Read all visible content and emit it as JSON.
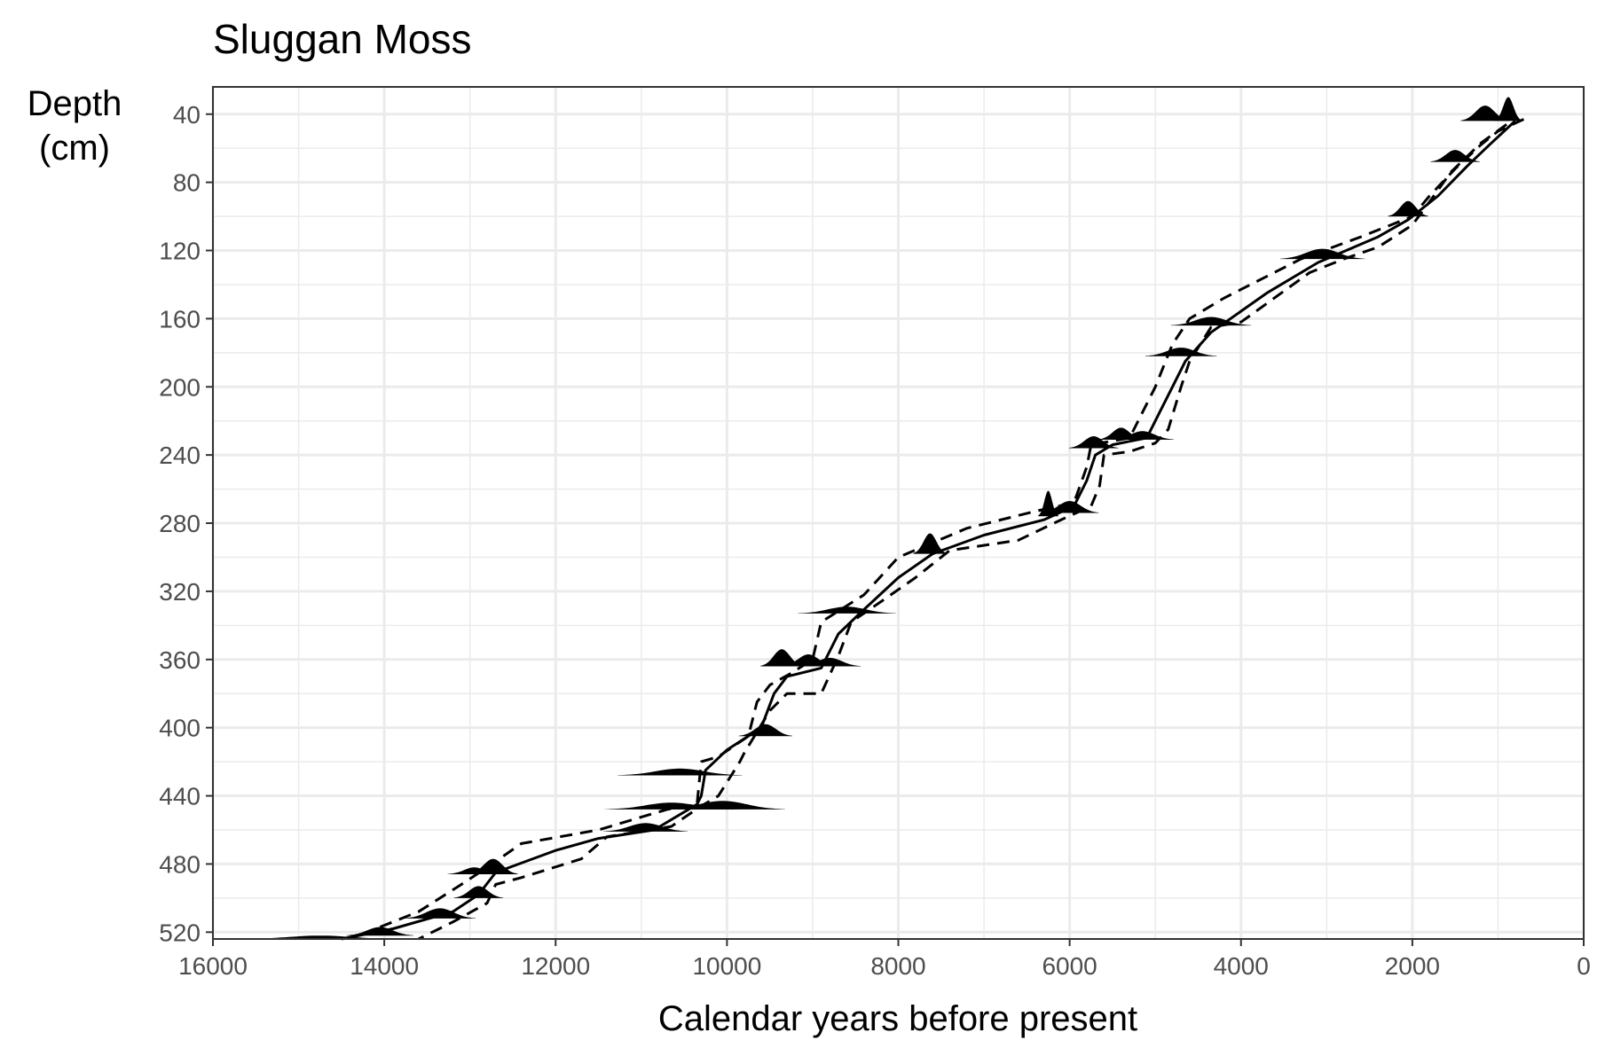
{
  "chart_data": {
    "type": "line",
    "title": "Sluggan Moss",
    "xlabel": "Calendar years before present",
    "ylabel_line1": "Depth",
    "ylabel_line2": "(cm)",
    "xlim": [
      16000,
      0
    ],
    "ylim": [
      524,
      24
    ],
    "x_ticks": [
      16000,
      14000,
      12000,
      10000,
      8000,
      6000,
      4000,
      2000,
      0
    ],
    "x_tick_labels": [
      "16000",
      "14000",
      "12000",
      "10000",
      "8000",
      "6000",
      "4000",
      "2000",
      "0"
    ],
    "y_ticks": [
      40,
      80,
      120,
      160,
      200,
      240,
      280,
      320,
      360,
      400,
      440,
      480,
      520
    ],
    "y_tick_labels": [
      "40",
      "80",
      "120",
      "160",
      "200",
      "240",
      "280",
      "320",
      "360",
      "400",
      "440",
      "480",
      "520"
    ],
    "grid": true,
    "colors": {
      "line": "#000000",
      "grid": "#ebebeb",
      "panel_border": "#333333",
      "density": "#000000"
    },
    "series": [
      {
        "name": "median",
        "style": "solid",
        "points": [
          [
            800,
            44
          ],
          [
            1100,
            58
          ],
          [
            1350,
            70
          ],
          [
            1700,
            88
          ],
          [
            2050,
            102
          ],
          [
            2400,
            112
          ],
          [
            3100,
            127
          ],
          [
            3700,
            145
          ],
          [
            4350,
            168
          ],
          [
            4650,
            185
          ],
          [
            4800,
            200
          ],
          [
            4950,
            215
          ],
          [
            5100,
            230
          ],
          [
            5500,
            234
          ],
          [
            5700,
            240
          ],
          [
            5800,
            255
          ],
          [
            5950,
            270
          ],
          [
            6300,
            278
          ],
          [
            7000,
            287
          ],
          [
            7600,
            298
          ],
          [
            8000,
            312
          ],
          [
            8450,
            333
          ],
          [
            8700,
            345
          ],
          [
            8900,
            365
          ],
          [
            9300,
            370
          ],
          [
            9450,
            380
          ],
          [
            9600,
            400
          ],
          [
            10000,
            413
          ],
          [
            10250,
            425
          ],
          [
            10300,
            440
          ],
          [
            10350,
            445
          ],
          [
            10850,
            460
          ],
          [
            11500,
            465
          ],
          [
            12000,
            472
          ],
          [
            12700,
            485
          ],
          [
            12900,
            498
          ],
          [
            13200,
            508
          ],
          [
            13900,
            518
          ],
          [
            14500,
            524
          ]
        ]
      },
      {
        "name": "upper_bound",
        "style": "dashed",
        "points": [
          [
            700,
            43
          ],
          [
            1000,
            50
          ],
          [
            1200,
            58
          ],
          [
            1500,
            72
          ],
          [
            1800,
            88
          ],
          [
            2000,
            100
          ],
          [
            2600,
            112
          ],
          [
            3300,
            125
          ],
          [
            4200,
            148
          ],
          [
            4600,
            160
          ],
          [
            4800,
            175
          ],
          [
            5000,
            200
          ],
          [
            5150,
            215
          ],
          [
            5300,
            230
          ],
          [
            5750,
            234
          ],
          [
            5800,
            247
          ],
          [
            5950,
            268
          ],
          [
            6400,
            273
          ],
          [
            7200,
            283
          ],
          [
            8000,
            300
          ],
          [
            8400,
            322
          ],
          [
            8900,
            338
          ],
          [
            9000,
            360
          ],
          [
            9250,
            368
          ],
          [
            9500,
            375
          ],
          [
            9650,
            385
          ],
          [
            9750,
            405
          ],
          [
            10100,
            417
          ],
          [
            10300,
            420
          ],
          [
            10350,
            445
          ],
          [
            10700,
            448
          ],
          [
            11500,
            460
          ],
          [
            12400,
            468
          ],
          [
            12800,
            482
          ],
          [
            13100,
            492
          ],
          [
            13600,
            508
          ],
          [
            14200,
            520
          ]
        ]
      },
      {
        "name": "lower_bound",
        "style": "dashed",
        "points": [
          [
            900,
            46
          ],
          [
            1200,
            57
          ],
          [
            1550,
            74
          ],
          [
            1750,
            88
          ],
          [
            2000,
            105
          ],
          [
            2400,
            118
          ],
          [
            2800,
            125
          ],
          [
            3200,
            133
          ],
          [
            4000,
            162
          ],
          [
            4350,
            165
          ],
          [
            4600,
            185
          ],
          [
            4700,
            200
          ],
          [
            4850,
            225
          ],
          [
            5000,
            233
          ],
          [
            5300,
            238
          ],
          [
            5600,
            240
          ],
          [
            5650,
            258
          ],
          [
            5750,
            270
          ],
          [
            6100,
            278
          ],
          [
            6600,
            290
          ],
          [
            7400,
            296
          ],
          [
            7800,
            312
          ],
          [
            8200,
            326
          ],
          [
            8550,
            338
          ],
          [
            8700,
            358
          ],
          [
            8900,
            380
          ],
          [
            9300,
            380
          ],
          [
            9500,
            390
          ],
          [
            9800,
            415
          ],
          [
            9850,
            420
          ],
          [
            10100,
            440
          ],
          [
            10300,
            446
          ],
          [
            10650,
            458
          ],
          [
            11400,
            464
          ],
          [
            11700,
            477
          ],
          [
            12400,
            488
          ],
          [
            12700,
            492
          ],
          [
            12800,
            503
          ],
          [
            13200,
            514
          ],
          [
            13600,
            524
          ]
        ]
      }
    ],
    "density_peaks": [
      {
        "depth": 44,
        "center": 1150,
        "height": 9,
        "width": 110
      },
      {
        "depth": 44,
        "center": 880,
        "height": 14,
        "width": 60
      },
      {
        "depth": 68,
        "center": 1500,
        "height": 7,
        "width": 110
      },
      {
        "depth": 100,
        "center": 2050,
        "height": 9,
        "width": 90
      },
      {
        "depth": 125,
        "center": 3050,
        "height": 6,
        "width": 190
      },
      {
        "depth": 164,
        "center": 4350,
        "height": 5,
        "width": 180
      },
      {
        "depth": 182,
        "center": 4700,
        "height": 5,
        "width": 160
      },
      {
        "depth": 236,
        "center": 5720,
        "height": 7,
        "width": 110
      },
      {
        "depth": 231,
        "center": 5400,
        "height": 7,
        "width": 100
      },
      {
        "depth": 231,
        "center": 5150,
        "height": 5,
        "width": 140
      },
      {
        "depth": 276,
        "center": 6250,
        "height": 15,
        "width": 45
      },
      {
        "depth": 274,
        "center": 6000,
        "height": 7,
        "width": 130
      },
      {
        "depth": 298,
        "center": 7630,
        "height": 12,
        "width": 75
      },
      {
        "depth": 333,
        "center": 8600,
        "height": 4,
        "width": 220
      },
      {
        "depth": 364,
        "center": 9360,
        "height": 10,
        "width": 95
      },
      {
        "depth": 364,
        "center": 9050,
        "height": 7,
        "width": 120
      },
      {
        "depth": 364,
        "center": 8800,
        "height": 5,
        "width": 140
      },
      {
        "depth": 405,
        "center": 9550,
        "height": 7,
        "width": 120
      },
      {
        "depth": 428,
        "center": 10550,
        "height": 4,
        "width": 280
      },
      {
        "depth": 448,
        "center": 10650,
        "height": 4,
        "width": 300
      },
      {
        "depth": 448,
        "center": 10050,
        "height": 5,
        "width": 280
      },
      {
        "depth": 461,
        "center": 10950,
        "height": 5,
        "width": 190
      },
      {
        "depth": 486,
        "center": 12730,
        "height": 9,
        "width": 110
      },
      {
        "depth": 486,
        "center": 12950,
        "height": 4,
        "width": 120
      },
      {
        "depth": 500,
        "center": 12900,
        "height": 7,
        "width": 110
      },
      {
        "depth": 512,
        "center": 13350,
        "height": 6,
        "width": 160
      },
      {
        "depth": 522,
        "center": 14050,
        "height": 5,
        "width": 150
      },
      {
        "depth": 524,
        "center": 14750,
        "height": 2,
        "width": 350
      }
    ]
  }
}
